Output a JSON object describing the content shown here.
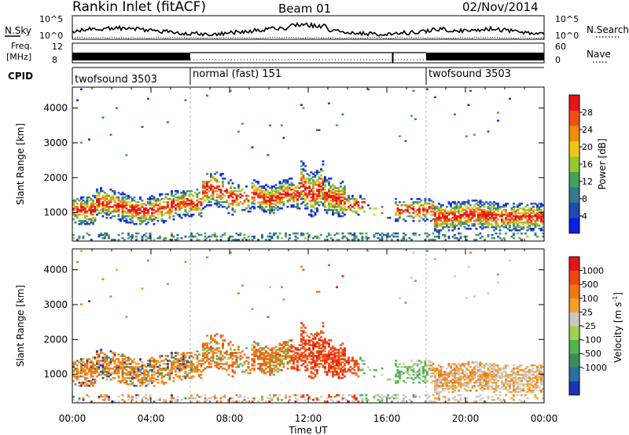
{
  "header": {
    "station": "Rankin Inlet (fitACF)",
    "beam": "Beam 01",
    "date": "02/Nov/2014"
  },
  "ops_panel": {
    "nsky_label": "N.Sky",
    "nsky_ticks": [
      "10^5",
      "10^0"
    ],
    "nsearch_label": "N.Search",
    "freq_label_1": "Freq.",
    "freq_label_2": "[MHz]",
    "freq_ticks": [
      "12",
      "8"
    ],
    "nave_label": "Nave",
    "nave_ticks": [
      "60",
      "0"
    ],
    "cpid_label": "CPID",
    "cpid_segments": [
      {
        "start_hour": 0,
        "end_hour": 6,
        "label": "twofsound 3503"
      },
      {
        "start_hour": 6,
        "end_hour": 18,
        "label": "normal (fast) 151"
      },
      {
        "start_hour": 18,
        "end_hour": 24,
        "label": "twofsound 3503"
      }
    ]
  },
  "chart_data": [
    {
      "type": "heatmap",
      "title": "",
      "parameter": "Power",
      "ylabel": "Slant Range [km]",
      "ylim": [
        180,
        4600
      ],
      "y_ticks": [
        1000,
        2000,
        3000,
        4000
      ],
      "xlabel": "",
      "colorbar": {
        "label": "Power [dB]",
        "ticks": [
          4,
          8,
          12,
          16,
          20,
          24,
          28
        ],
        "range": [
          0,
          32
        ],
        "colors": [
          "#0a1ee6",
          "#1e4ab4",
          "#327a8c",
          "#46a05a",
          "#96c832",
          "#f0c814",
          "#f08c0a",
          "#f05014",
          "#e61414"
        ]
      }
    },
    {
      "type": "heatmap",
      "title": "",
      "parameter": "Velocity",
      "ylabel": "Slant Range [km]",
      "ylim": [
        180,
        4600
      ],
      "y_ticks": [
        1000,
        2000,
        3000,
        4000
      ],
      "xlabel": "Time UT",
      "x_ticks": [
        "00:00",
        "04:00",
        "08:00",
        "12:00",
        "16:00",
        "20:00",
        "00:00"
      ],
      "xlim_hours": [
        0,
        24
      ],
      "colorbar": {
        "label": "Velocity [m s-1]",
        "label_main": "Velocity [m s",
        "label_sup": "-1",
        "label_end": "]",
        "ticks": [
          "1000",
          "500",
          "100",
          "25",
          "-25",
          "-100",
          "-500",
          "-1000"
        ],
        "colors": [
          "#1e32b4",
          "#2870a0",
          "#3c8c5a",
          "#50b450",
          "#a0d250",
          "#c8c8c8",
          "#f5a028",
          "#f07814",
          "#f04614",
          "#e61414"
        ]
      }
    }
  ]
}
